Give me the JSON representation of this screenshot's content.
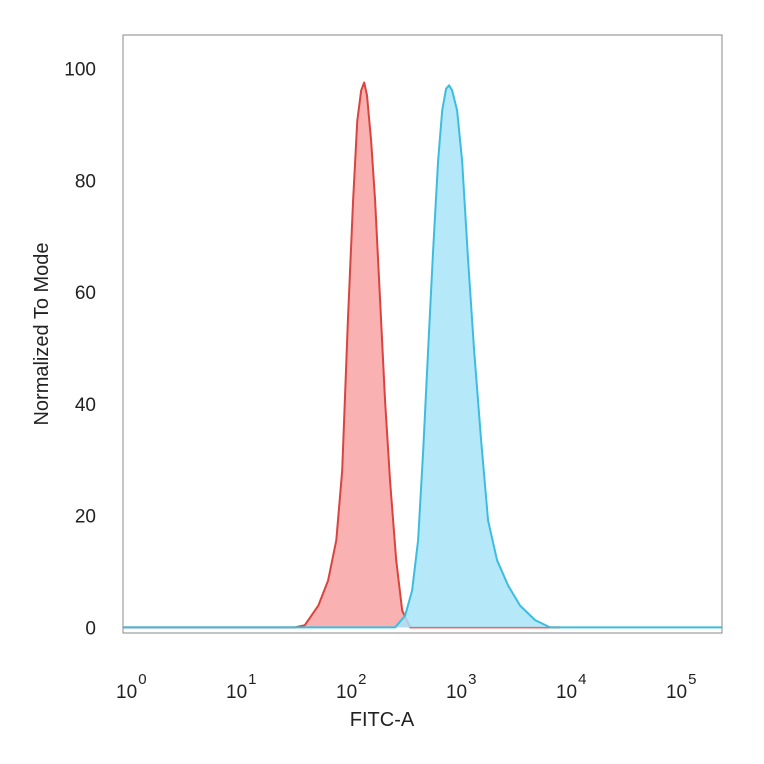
{
  "chart_data": {
    "type": "histogram-overlay",
    "x_label": "FITC-A",
    "y_label": "Normalized To Mode",
    "xscale": "log",
    "xlim": [
      0.955,
      267000
    ],
    "ylim": [
      -1,
      106
    ],
    "xticks": [
      {
        "value": 1,
        "label": "10",
        "sup": "0"
      },
      {
        "value": 10,
        "label": "10",
        "sup": "1"
      },
      {
        "value": 100,
        "label": "10",
        "sup": "2"
      },
      {
        "value": 1000,
        "label": "10",
        "sup": "3"
      },
      {
        "value": 10000,
        "label": "10",
        "sup": "4"
      },
      {
        "value": 100000,
        "label": "10",
        "sup": "5"
      }
    ],
    "yticks": [
      0,
      20,
      40,
      60,
      80,
      100
    ],
    "series": [
      {
        "color": "#d9443f",
        "fill": "#f9a3a3",
        "x": [
          0.955,
          35,
          43,
          57,
          70,
          83,
          94,
          106,
          118,
          129,
          140,
          149,
          158,
          172,
          187,
          208,
          231,
          256,
          291,
          330,
          390,
          481,
          9010
        ],
        "values": [
          0,
          0,
          0.4,
          3.9,
          8.4,
          15.6,
          28.1,
          54.9,
          76.4,
          90.7,
          96.1,
          97.5,
          95.2,
          87.1,
          76.4,
          58.5,
          40.4,
          26.1,
          12.0,
          3.0,
          0,
          0,
          0
        ]
      },
      {
        "color": "#3cbde0",
        "fill": "#a8e4f7",
        "x": [
          0.955,
          208,
          285,
          351,
          406,
          461,
          512,
          568,
          631,
          700,
          762,
          828,
          882,
          939,
          1043,
          1158,
          1313,
          1488,
          1723,
          1995,
          2409,
          3034,
          3899,
          5337,
          7305,
          10000,
          267000
        ],
        "values": [
          0,
          0,
          0,
          2.1,
          6.6,
          15.6,
          31.7,
          49.6,
          67.4,
          83.5,
          92.5,
          96.4,
          97.0,
          96.1,
          92.5,
          83.5,
          65.7,
          49.6,
          33.5,
          19.1,
          12.0,
          7.5,
          3.9,
          1.3,
          0,
          0,
          0
        ]
      }
    ]
  }
}
